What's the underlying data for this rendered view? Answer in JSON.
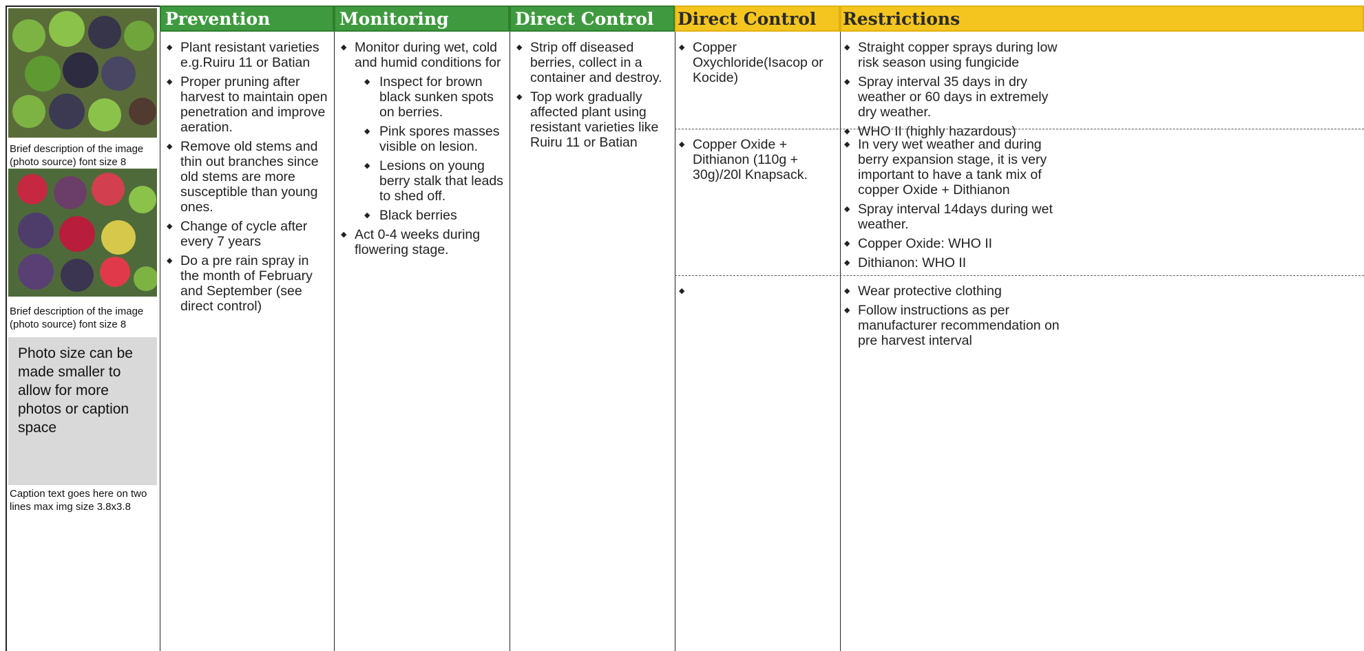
{
  "photos": [
    {
      "caption": "Brief description of the image (photo source) font size 8"
    },
    {
      "caption": "Brief description of the image (photo source) font size 8"
    }
  ],
  "placeholder": "Photo size can be made smaller to allow for more photos or caption space",
  "caption": "Caption text goes here on two lines max img size 3.8x3.8",
  "columns": [
    {
      "header": "Prevention",
      "items": [
        {
          "text": "Plant resistant varieties e.g.Ruiru 11 or Batian"
        },
        {
          "text": "Proper pruning after harvest to maintain open penetration and improve aeration."
        },
        {
          "text": "Remove old stems and thin out branches since old stems are more susceptible than young ones."
        },
        {
          "text": "Change of cycle after every 7 years"
        },
        {
          "text": "Do a pre rain spray in the month of February and September (see direct control)"
        }
      ]
    },
    {
      "header": "Monitoring",
      "items": [
        {
          "text": "Monitor during wet, cold and humid conditions for",
          "sub": [
            "Inspect for brown black sunken spots on berries.",
            "Pink spores masses visible on lesion.",
            "Lesions on young berry stalk that leads to shed off.",
            "Black berries"
          ]
        },
        {
          "text": "Act 0-4 weeks during flowering stage."
        }
      ]
    },
    {
      "header": "Direct Control",
      "items": [
        {
          "text": "Strip off diseased berries, collect in a container and destroy."
        },
        {
          "text": "Top work gradually affected plant using resistant varieties like Ruiru 11 or Batian"
        }
      ]
    },
    {
      "header": "Direct Control"
    },
    {
      "header": "Restrictions"
    }
  ],
  "control_rows": [
    {
      "control": [
        "Copper Oxychloride(Isacop or Kocide)"
      ],
      "restrictions": [
        "Straight copper sprays during low risk season using fungicide",
        "Spray interval 35 days in dry weather or 60 days in extremely dry weather.",
        "WHO II (highly hazardous)"
      ]
    },
    {
      "control": [
        "Copper Oxide + Dithianon (110g + 30g)/20l Knapsack."
      ],
      "restrictions": [
        "In very wet weather and during berry expansion stage, it is very important to have a tank mix of copper Oxide + Dithianon",
        "Spray interval 14days during wet weather.",
        "Copper Oxide: WHO II",
        "Dithianon: WHO II"
      ]
    },
    {
      "control": [],
      "restrictions": [
        "Wear protective clothing",
        "Follow instructions as per manufacturer recommendation on pre harvest interval"
      ]
    }
  ]
}
